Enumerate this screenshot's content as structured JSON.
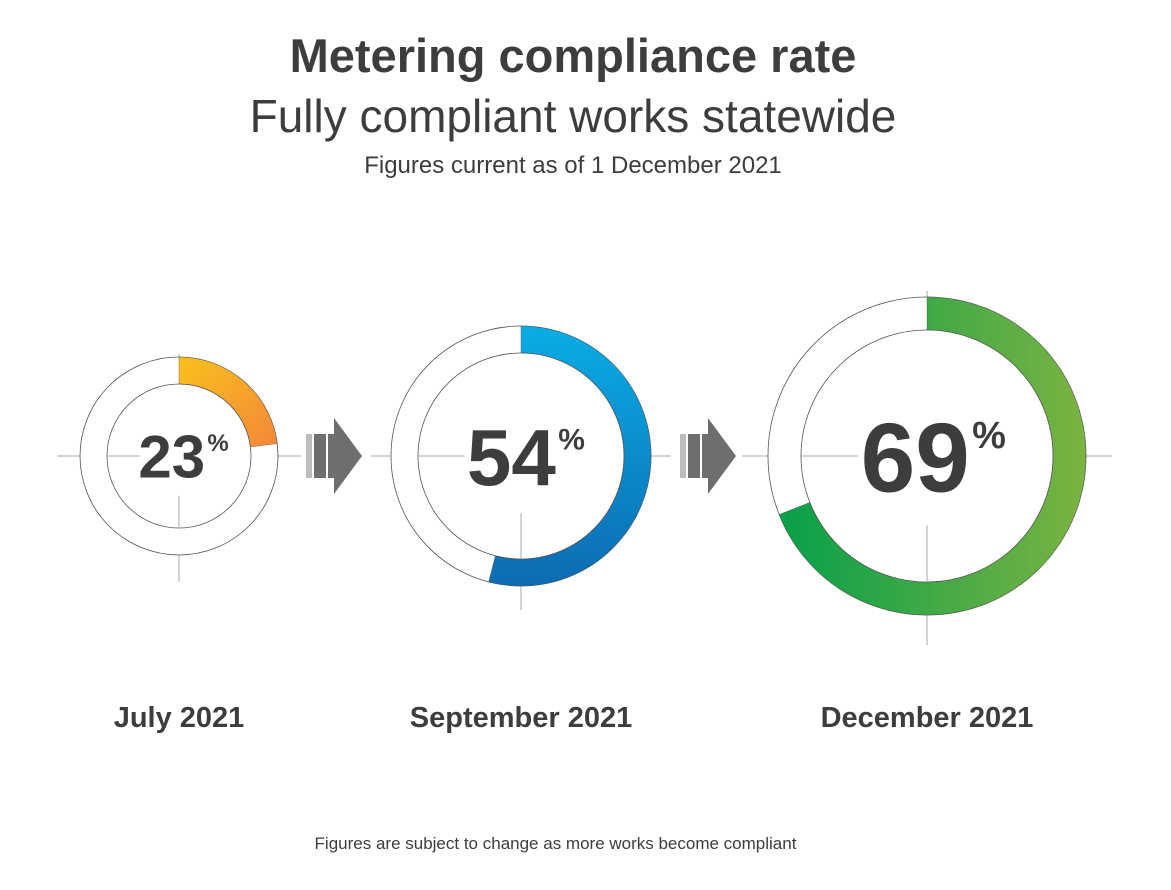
{
  "chart_data": {
    "type": "pie",
    "title": "Metering compliance rate",
    "subtitle": "Fully compliant works statewide",
    "as_of": "Figures current as of 1 December 2021",
    "unit": "%",
    "categories": [
      "July 2021",
      "September 2021",
      "December 2021"
    ],
    "values": [
      23,
      54,
      69
    ],
    "footnote": "Figures are subject to change as more works become compliant",
    "colors": {
      "july": [
        "#f9c11c",
        "#f5873a"
      ],
      "september": [
        "#0aace6",
        "#0c6bb2"
      ],
      "december": [
        "#7bb342",
        "#07a04a"
      ],
      "arrow": "#6e6e6e",
      "arrow_light": "#bdbdbd",
      "text": "#3d3d3d",
      "crosshair": "#aaaaaa",
      "ring_outline": "#555555"
    }
  }
}
